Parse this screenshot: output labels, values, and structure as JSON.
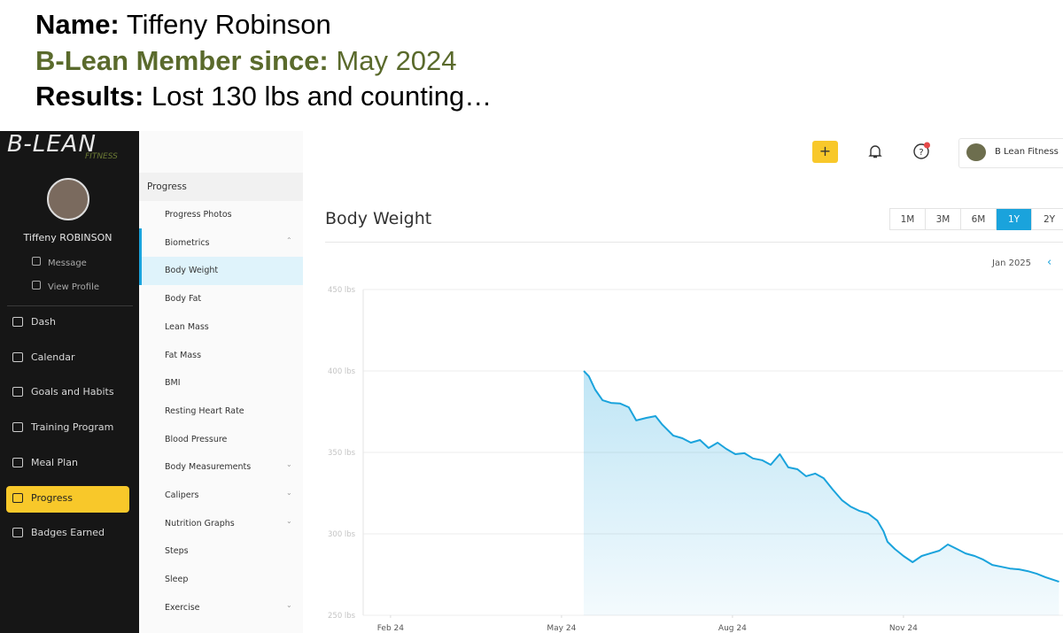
{
  "header": {
    "name_label": "Name:",
    "name": "Tiffeny Robinson",
    "member_label": "B-Lean Member since:",
    "member_since": "May 2024",
    "results_label": "Results:",
    "results": "Lost 130 lbs and counting…"
  },
  "sidebar": {
    "logo": "B-LEAN",
    "logo_sub": "FITNESS",
    "user": "Tiffeny ROBINSON",
    "links": [
      "Message",
      "View Profile"
    ],
    "nav": [
      "Dash",
      "Calendar",
      "Goals and Habits",
      "Training Program",
      "Meal Plan",
      "Progress",
      "Badges Earned"
    ]
  },
  "submenu": {
    "title": "Progress",
    "items": [
      "Progress Photos",
      "Biometrics",
      "Body Weight",
      "Body Fat",
      "Lean Mass",
      "Fat Mass",
      "BMI",
      "Resting Heart Rate",
      "Blood Pressure",
      "Body Measurements",
      "Calipers",
      "Nutrition Graphs",
      "Steps",
      "Sleep",
      "Exercise"
    ]
  },
  "topbar": {
    "account": "B Lean Fitness"
  },
  "controls": {
    "ranges": [
      "1M",
      "3M",
      "6M",
      "1Y",
      "2Y"
    ],
    "period": "Jan 2025"
  },
  "chart_data": {
    "type": "line",
    "title": "Body Weight",
    "x": [
      5.39,
      5.48,
      5.59,
      5.72,
      5.87,
      6.03,
      6.18,
      6.31,
      6.49,
      6.65,
      6.77,
      6.96,
      7.12,
      7.27,
      7.43,
      7.58,
      7.74,
      7.89,
      8.05,
      8.21,
      8.36,
      8.52,
      8.67,
      8.83,
      8.98,
      9.14,
      9.29,
      9.45,
      9.6,
      9.76,
      9.92,
      10.07,
      10.23,
      10.38,
      10.54,
      10.65,
      10.72,
      10.85,
      11.0,
      11.16,
      11.32,
      11.47,
      11.63,
      11.78,
      11.94,
      12.09,
      12.25,
      12.4,
      12.56,
      12.72,
      12.87,
      13.03,
      13.18,
      13.34,
      13.49,
      13.73
    ],
    "series": [
      {
        "color": "#1aa3dc",
        "values": [
          400,
          396.7,
          388.6,
          382,
          380.4,
          380,
          377.7,
          369.6,
          371.2,
          372.3,
          367,
          360.3,
          358.7,
          356,
          357.6,
          352.7,
          356,
          352.2,
          348.9,
          349.5,
          346.3,
          345.2,
          342.4,
          348.9,
          340.8,
          339.7,
          335.4,
          337,
          334.2,
          327.2,
          320.7,
          316.8,
          314.1,
          312.5,
          308.2,
          301.6,
          295.1,
          290.7,
          286.4,
          282.6,
          286.4,
          288,
          289.7,
          293.5,
          290.7,
          288,
          286.4,
          284.2,
          280.9,
          279.8,
          278.7,
          278.2,
          277.1,
          275.5,
          273.4,
          270.6
        ]
      }
    ],
    "xlim": [
      1.52,
      13.8
    ],
    "ylim": [
      250,
      450
    ],
    "xticks": [
      {
        "value": 2,
        "label": "Feb 24"
      },
      {
        "value": 5,
        "label": "May 24"
      },
      {
        "value": 8,
        "label": "Aug 24"
      },
      {
        "value": 11,
        "label": "Nov 24"
      }
    ],
    "yticks": [
      {
        "value": 250,
        "label": "250 lbs"
      },
      {
        "value": 300,
        "label": "300 lbs"
      },
      {
        "value": 350,
        "label": "350 lbs"
      },
      {
        "value": 400,
        "label": "400 lbs"
      },
      {
        "value": 450,
        "label": "450 lbs"
      }
    ],
    "grid": true
  }
}
